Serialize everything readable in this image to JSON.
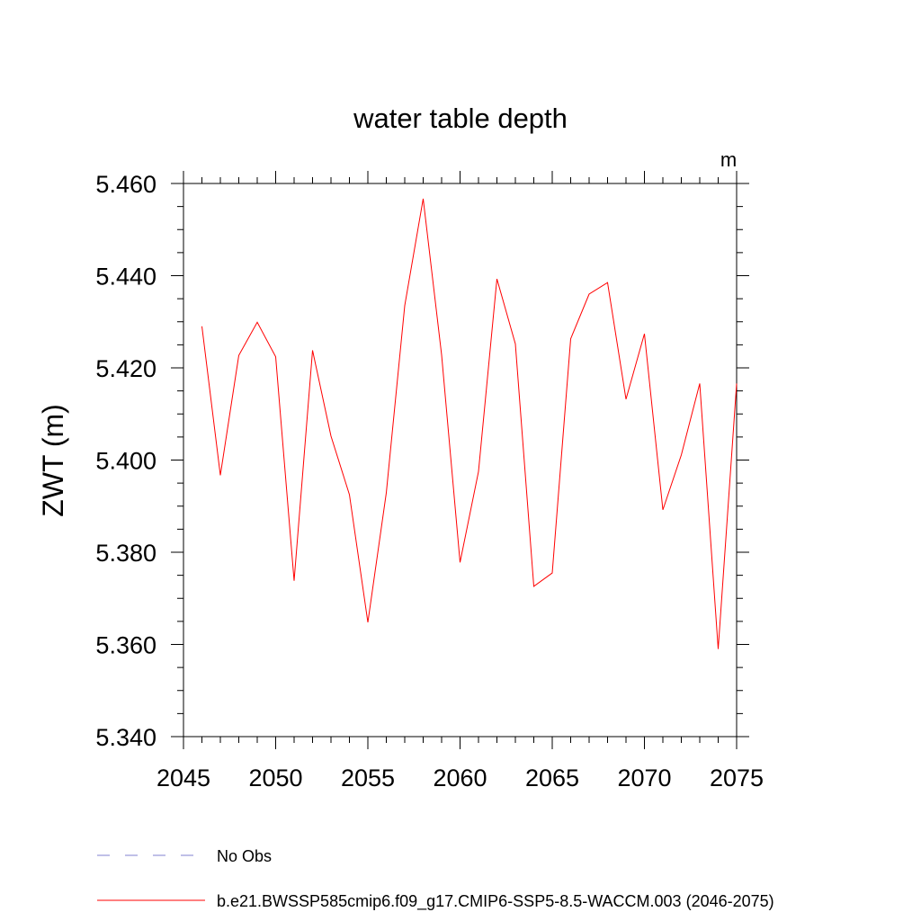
{
  "chart_data": {
    "type": "line",
    "title": "water table depth",
    "units": "m",
    "ylabel": "ZWT  (m)",
    "xlabel": "",
    "xlim": [
      2045,
      2075
    ],
    "ylim": [
      5.34,
      5.46
    ],
    "x_ticks": [
      2045,
      2050,
      2055,
      2060,
      2065,
      2070,
      2075
    ],
    "x_tick_labels": [
      "2045",
      "2050",
      "2055",
      "2060",
      "2065",
      "2070",
      "2075"
    ],
    "y_ticks": [
      5.34,
      5.36,
      5.38,
      5.4,
      5.42,
      5.44,
      5.46
    ],
    "y_tick_labels": [
      "5.340",
      "5.360",
      "5.380",
      "5.400",
      "5.420",
      "5.440",
      "5.460"
    ],
    "x": [
      2046,
      2047,
      2048,
      2049,
      2050,
      2051,
      2052,
      2053,
      2054,
      2055,
      2056,
      2057,
      2058,
      2059,
      2060,
      2061,
      2062,
      2063,
      2064,
      2065,
      2066,
      2067,
      2068,
      2069,
      2070,
      2071,
      2072,
      2073,
      2074,
      2075
    ],
    "series": [
      {
        "name": "b.e21.BWSSP585cmip6.f09_g17.CMIP6-SSP5-8.5-WACCM.003 (2046-2075)",
        "color": "#ff0000",
        "style": "solid",
        "values": [
          5.429,
          5.3967,
          5.4227,
          5.4299,
          5.4224,
          5.3738,
          5.4238,
          5.4052,
          5.3925,
          5.3648,
          5.3929,
          5.4335,
          5.4567,
          5.4228,
          5.3778,
          5.3975,
          5.4393,
          5.4252,
          5.3726,
          5.3755,
          5.4263,
          5.436,
          5.4385,
          5.4132,
          5.4274,
          5.3892,
          5.4011,
          5.4166,
          5.359,
          5.4166
        ]
      }
    ],
    "legend": [
      {
        "label": "No Obs",
        "color": "#8080d0",
        "style": "dashed"
      },
      {
        "label": "b.e21.BWSSP585cmip6.f09_g17.CMIP6-SSP5-8.5-WACCM.003 (2046-2075)",
        "color": "#ff0000",
        "style": "solid"
      }
    ],
    "legend_position": "bottom",
    "grid": false
  }
}
